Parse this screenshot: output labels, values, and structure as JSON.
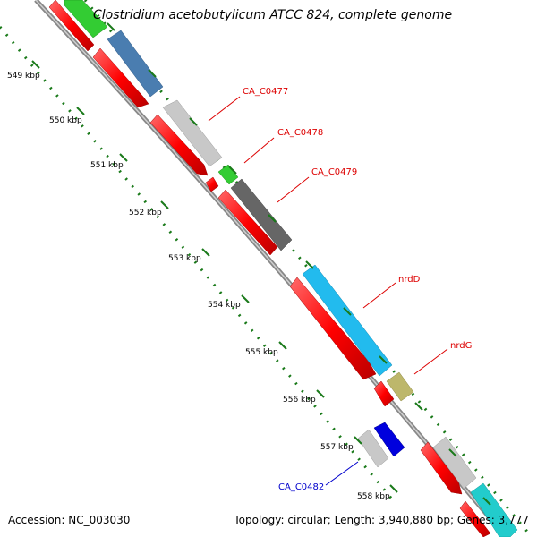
{
  "title": "Clostridium acetobutylicum ATCC 824, complete genome",
  "footer": {
    "accession": "Accession: NC_003030",
    "topology": "Topology: circular; Length: 3,940,880 bp; Genes: 3,777"
  },
  "colors": {
    "red": "#ff0000",
    "blue_gene": "#4a7db0",
    "light_gray": "#c8c8c8",
    "green": "#33cc33",
    "dark_gray": "#666666",
    "cyan": "#22bbee",
    "khaki": "#bdb76b",
    "navy": "#0000dd",
    "teal": "#22cccc",
    "tick_green": "#1a7a1a",
    "label_red": "#dd0000",
    "label_blue": "#0000cc"
  },
  "ticks": [
    {
      "label": "549 kbp"
    },
    {
      "label": "550 kbp"
    },
    {
      "label": "551 kbp"
    },
    {
      "label": "552 kbp"
    },
    {
      "label": "553 kbp"
    },
    {
      "label": "554 kbp"
    },
    {
      "label": "555 kbp"
    },
    {
      "label": "556 kbp"
    },
    {
      "label": "557 kbp"
    },
    {
      "label": "558 kbp"
    }
  ],
  "gene_labels": [
    {
      "name": "CA_C0477",
      "color": "#dd0000"
    },
    {
      "name": "CA_C0478",
      "color": "#dd0000"
    },
    {
      "name": "CA_C0479",
      "color": "#dd0000"
    },
    {
      "name": "nrdD",
      "color": "#dd0000"
    },
    {
      "name": "nrdG",
      "color": "#dd0000"
    },
    {
      "name": "CA_C0482",
      "color": "#0000cc"
    }
  ]
}
